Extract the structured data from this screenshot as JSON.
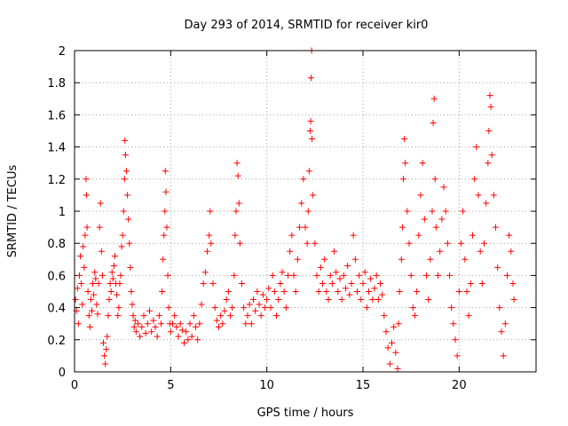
{
  "chart_data": {
    "type": "scatter",
    "title": "Day 293 of 2014, SRMTID for receiver kir0",
    "xlabel": "GPS time / hours",
    "ylabel": "SRMTID / TECUs",
    "xlim": [
      0,
      24
    ],
    "ylim": [
      0,
      2
    ],
    "xticks": [
      0,
      5,
      10,
      15,
      20
    ],
    "xtick_labels": [
      "0",
      "5",
      "10",
      "15",
      "20"
    ],
    "yticks": [
      0,
      0.2,
      0.4,
      0.6,
      0.8,
      1,
      1.2,
      1.4,
      1.6,
      1.8,
      2
    ],
    "ytick_labels": [
      "0",
      "0.2",
      "0.4",
      "0.6",
      "0.8",
      "1",
      "1.2",
      "1.4",
      "1.6",
      "1.8",
      "2"
    ],
    "grid": true,
    "marker": "+",
    "series": [
      {
        "name": "SRMTID",
        "color": "#ff0000",
        "points": [
          [
            0.05,
            0.45
          ],
          [
            0.1,
            0.38
          ],
          [
            0.15,
            0.52
          ],
          [
            0.2,
            0.3
          ],
          [
            0.25,
            0.6
          ],
          [
            0.3,
            0.72
          ],
          [
            0.35,
            0.55
          ],
          [
            0.4,
            0.42
          ],
          [
            0.45,
            0.78
          ],
          [
            0.5,
            0.65
          ],
          [
            0.55,
            0.85
          ],
          [
            0.6,
            1.2
          ],
          [
            0.62,
            1.1
          ],
          [
            0.65,
            0.9
          ],
          [
            0.7,
            0.5
          ],
          [
            0.75,
            0.35
          ],
          [
            0.8,
            0.28
          ],
          [
            0.85,
            0.45
          ],
          [
            0.9,
            0.38
          ],
          [
            0.95,
            0.55
          ],
          [
            1.0,
            0.48
          ],
          [
            1.05,
            0.62
          ],
          [
            1.1,
            0.58
          ],
          [
            1.15,
            0.42
          ],
          [
            1.2,
            0.36
          ],
          [
            1.25,
            0.55
          ],
          [
            1.3,
            0.9
          ],
          [
            1.35,
            1.05
          ],
          [
            1.4,
            0.75
          ],
          [
            1.45,
            0.6
          ],
          [
            1.5,
            0.18
          ],
          [
            1.55,
            0.1
          ],
          [
            1.6,
            0.05
          ],
          [
            1.65,
            0.14
          ],
          [
            1.7,
            0.22
          ],
          [
            1.75,
            0.35
          ],
          [
            1.8,
            0.45
          ],
          [
            1.85,
            0.55
          ],
          [
            1.9,
            0.5
          ],
          [
            1.95,
            0.62
          ],
          [
            2.0,
            0.58
          ],
          [
            2.05,
            0.66
          ],
          [
            2.1,
            0.72
          ],
          [
            2.15,
            0.55
          ],
          [
            2.2,
            0.48
          ],
          [
            2.25,
            0.35
          ],
          [
            2.3,
            0.4
          ],
          [
            2.35,
            0.55
          ],
          [
            2.4,
            0.6
          ],
          [
            2.45,
            0.78
          ],
          [
            2.5,
            0.85
          ],
          [
            2.55,
            1.0
          ],
          [
            2.6,
            1.2
          ],
          [
            2.62,
            1.44
          ],
          [
            2.65,
            1.35
          ],
          [
            2.7,
            1.25
          ],
          [
            2.75,
            1.1
          ],
          [
            2.8,
            0.95
          ],
          [
            2.85,
            0.8
          ],
          [
            2.9,
            0.65
          ],
          [
            2.95,
            0.5
          ],
          [
            3.0,
            0.42
          ],
          [
            3.05,
            0.35
          ],
          [
            3.1,
            0.28
          ],
          [
            3.15,
            0.32
          ],
          [
            3.2,
            0.25
          ],
          [
            3.3,
            0.3
          ],
          [
            3.4,
            0.22
          ],
          [
            3.5,
            0.28
          ],
          [
            3.6,
            0.35
          ],
          [
            3.7,
            0.24
          ],
          [
            3.8,
            0.3
          ],
          [
            3.9,
            0.38
          ],
          [
            4.0,
            0.25
          ],
          [
            4.1,
            0.32
          ],
          [
            4.2,
            0.28
          ],
          [
            4.3,
            0.22
          ],
          [
            4.4,
            0.35
          ],
          [
            4.5,
            0.3
          ],
          [
            4.55,
            0.5
          ],
          [
            4.6,
            0.7
          ],
          [
            4.65,
            0.85
          ],
          [
            4.7,
            1.0
          ],
          [
            4.72,
            1.25
          ],
          [
            4.75,
            1.12
          ],
          [
            4.8,
            0.9
          ],
          [
            4.85,
            0.6
          ],
          [
            4.9,
            0.4
          ],
          [
            4.95,
            0.3
          ],
          [
            5.0,
            0.25
          ],
          [
            5.1,
            0.3
          ],
          [
            5.2,
            0.35
          ],
          [
            5.3,
            0.28
          ],
          [
            5.4,
            0.22
          ],
          [
            5.5,
            0.3
          ],
          [
            5.6,
            0.26
          ],
          [
            5.7,
            0.18
          ],
          [
            5.8,
            0.25
          ],
          [
            5.9,
            0.2
          ],
          [
            6.0,
            0.3
          ],
          [
            6.1,
            0.22
          ],
          [
            6.2,
            0.35
          ],
          [
            6.3,
            0.28
          ],
          [
            6.4,
            0.2
          ],
          [
            6.5,
            0.3
          ],
          [
            6.6,
            0.42
          ],
          [
            6.7,
            0.55
          ],
          [
            6.8,
            0.62
          ],
          [
            6.9,
            0.75
          ],
          [
            7.0,
            0.85
          ],
          [
            7.05,
            1.0
          ],
          [
            7.1,
            0.8
          ],
          [
            7.2,
            0.55
          ],
          [
            7.3,
            0.4
          ],
          [
            7.4,
            0.32
          ],
          [
            7.5,
            0.28
          ],
          [
            7.6,
            0.35
          ],
          [
            7.7,
            0.3
          ],
          [
            7.8,
            0.38
          ],
          [
            7.9,
            0.45
          ],
          [
            8.0,
            0.5
          ],
          [
            8.1,
            0.35
          ],
          [
            8.2,
            0.4
          ],
          [
            8.3,
            0.6
          ],
          [
            8.35,
            0.85
          ],
          [
            8.4,
            1.0
          ],
          [
            8.45,
            1.3
          ],
          [
            8.5,
            1.22
          ],
          [
            8.55,
            1.05
          ],
          [
            8.6,
            0.8
          ],
          [
            8.7,
            0.55
          ],
          [
            8.8,
            0.4
          ],
          [
            8.9,
            0.3
          ],
          [
            9.0,
            0.35
          ],
          [
            9.1,
            0.42
          ],
          [
            9.2,
            0.3
          ],
          [
            9.3,
            0.45
          ],
          [
            9.4,
            0.38
          ],
          [
            9.5,
            0.5
          ],
          [
            9.6,
            0.42
          ],
          [
            9.7,
            0.35
          ],
          [
            9.8,
            0.48
          ],
          [
            9.9,
            0.4
          ],
          [
            10.0,
            0.45
          ],
          [
            10.1,
            0.52
          ],
          [
            10.2,
            0.4
          ],
          [
            10.3,
            0.6
          ],
          [
            10.4,
            0.5
          ],
          [
            10.5,
            0.35
          ],
          [
            10.6,
            0.45
          ],
          [
            10.7,
            0.55
          ],
          [
            10.8,
            0.62
          ],
          [
            10.9,
            0.5
          ],
          [
            11.0,
            0.4
          ],
          [
            11.1,
            0.6
          ],
          [
            11.2,
            0.75
          ],
          [
            11.3,
            0.85
          ],
          [
            11.4,
            0.6
          ],
          [
            11.5,
            0.5
          ],
          [
            11.6,
            0.7
          ],
          [
            11.7,
            0.9
          ],
          [
            11.8,
            1.05
          ],
          [
            11.9,
            1.2
          ],
          [
            12.0,
            0.9
          ],
          [
            12.1,
            0.8
          ],
          [
            12.15,
            1.0
          ],
          [
            12.2,
            1.25
          ],
          [
            12.25,
            1.5
          ],
          [
            12.28,
            1.56
          ],
          [
            12.3,
            1.83
          ],
          [
            12.33,
            2.0
          ],
          [
            12.35,
            1.45
          ],
          [
            12.4,
            1.1
          ],
          [
            12.5,
            0.8
          ],
          [
            12.6,
            0.6
          ],
          [
            12.7,
            0.5
          ],
          [
            12.8,
            0.65
          ],
          [
            12.9,
            0.55
          ],
          [
            13.0,
            0.7
          ],
          [
            13.1,
            0.5
          ],
          [
            13.2,
            0.45
          ],
          [
            13.3,
            0.6
          ],
          [
            13.4,
            0.55
          ],
          [
            13.5,
            0.75
          ],
          [
            13.6,
            0.62
          ],
          [
            13.7,
            0.5
          ],
          [
            13.8,
            0.58
          ],
          [
            13.9,
            0.45
          ],
          [
            14.0,
            0.6
          ],
          [
            14.1,
            0.52
          ],
          [
            14.2,
            0.66
          ],
          [
            14.3,
            0.48
          ],
          [
            14.4,
            0.55
          ],
          [
            14.5,
            0.85
          ],
          [
            14.6,
            0.7
          ],
          [
            14.7,
            0.5
          ],
          [
            14.8,
            0.6
          ],
          [
            14.9,
            0.45
          ],
          [
            15.0,
            0.55
          ],
          [
            15.1,
            0.62
          ],
          [
            15.2,
            0.4
          ],
          [
            15.3,
            0.5
          ],
          [
            15.4,
            0.58
          ],
          [
            15.5,
            0.45
          ],
          [
            15.6,
            0.52
          ],
          [
            15.7,
            0.6
          ],
          [
            15.8,
            0.45
          ],
          [
            15.9,
            0.55
          ],
          [
            16.0,
            0.48
          ],
          [
            16.1,
            0.35
          ],
          [
            16.2,
            0.25
          ],
          [
            16.3,
            0.15
          ],
          [
            16.4,
            0.05
          ],
          [
            16.5,
            0.18
          ],
          [
            16.6,
            0.28
          ],
          [
            16.7,
            0.12
          ],
          [
            16.8,
            0.02
          ],
          [
            16.85,
            0.3
          ],
          [
            16.9,
            0.5
          ],
          [
            17.0,
            0.7
          ],
          [
            17.05,
            0.9
          ],
          [
            17.1,
            1.2
          ],
          [
            17.15,
            1.45
          ],
          [
            17.2,
            1.3
          ],
          [
            17.3,
            1.0
          ],
          [
            17.4,
            0.8
          ],
          [
            17.5,
            0.6
          ],
          [
            17.6,
            0.4
          ],
          [
            17.7,
            0.35
          ],
          [
            17.8,
            0.5
          ],
          [
            17.9,
            0.85
          ],
          [
            18.0,
            1.1
          ],
          [
            18.1,
            1.3
          ],
          [
            18.2,
            0.95
          ],
          [
            18.3,
            0.6
          ],
          [
            18.4,
            0.45
          ],
          [
            18.5,
            0.7
          ],
          [
            18.6,
            1.0
          ],
          [
            18.65,
            1.55
          ],
          [
            18.7,
            1.7
          ],
          [
            18.75,
            1.2
          ],
          [
            18.8,
            0.9
          ],
          [
            18.9,
            0.6
          ],
          [
            19.0,
            0.75
          ],
          [
            19.1,
            0.95
          ],
          [
            19.2,
            1.15
          ],
          [
            19.3,
            1.0
          ],
          [
            19.4,
            0.8
          ],
          [
            19.5,
            0.6
          ],
          [
            19.6,
            0.4
          ],
          [
            19.7,
            0.3
          ],
          [
            19.8,
            0.2
          ],
          [
            19.9,
            0.1
          ],
          [
            20.0,
            0.5
          ],
          [
            20.1,
            0.8
          ],
          [
            20.2,
            1.0
          ],
          [
            20.3,
            0.7
          ],
          [
            20.4,
            0.5
          ],
          [
            20.5,
            0.35
          ],
          [
            20.6,
            0.55
          ],
          [
            20.7,
            0.85
          ],
          [
            20.8,
            1.2
          ],
          [
            20.9,
            1.4
          ],
          [
            21.0,
            1.1
          ],
          [
            21.1,
            0.75
          ],
          [
            21.2,
            0.55
          ],
          [
            21.3,
            0.8
          ],
          [
            21.4,
            1.05
          ],
          [
            21.5,
            1.3
          ],
          [
            21.55,
            1.5
          ],
          [
            21.6,
            1.72
          ],
          [
            21.65,
            1.65
          ],
          [
            21.7,
            1.35
          ],
          [
            21.8,
            1.1
          ],
          [
            21.9,
            0.9
          ],
          [
            22.0,
            0.65
          ],
          [
            22.1,
            0.4
          ],
          [
            22.2,
            0.25
          ],
          [
            22.3,
            0.1
          ],
          [
            22.4,
            0.3
          ],
          [
            22.5,
            0.6
          ],
          [
            22.6,
            0.85
          ],
          [
            22.7,
            0.75
          ],
          [
            22.8,
            0.55
          ],
          [
            22.85,
            0.45
          ]
        ]
      }
    ]
  }
}
